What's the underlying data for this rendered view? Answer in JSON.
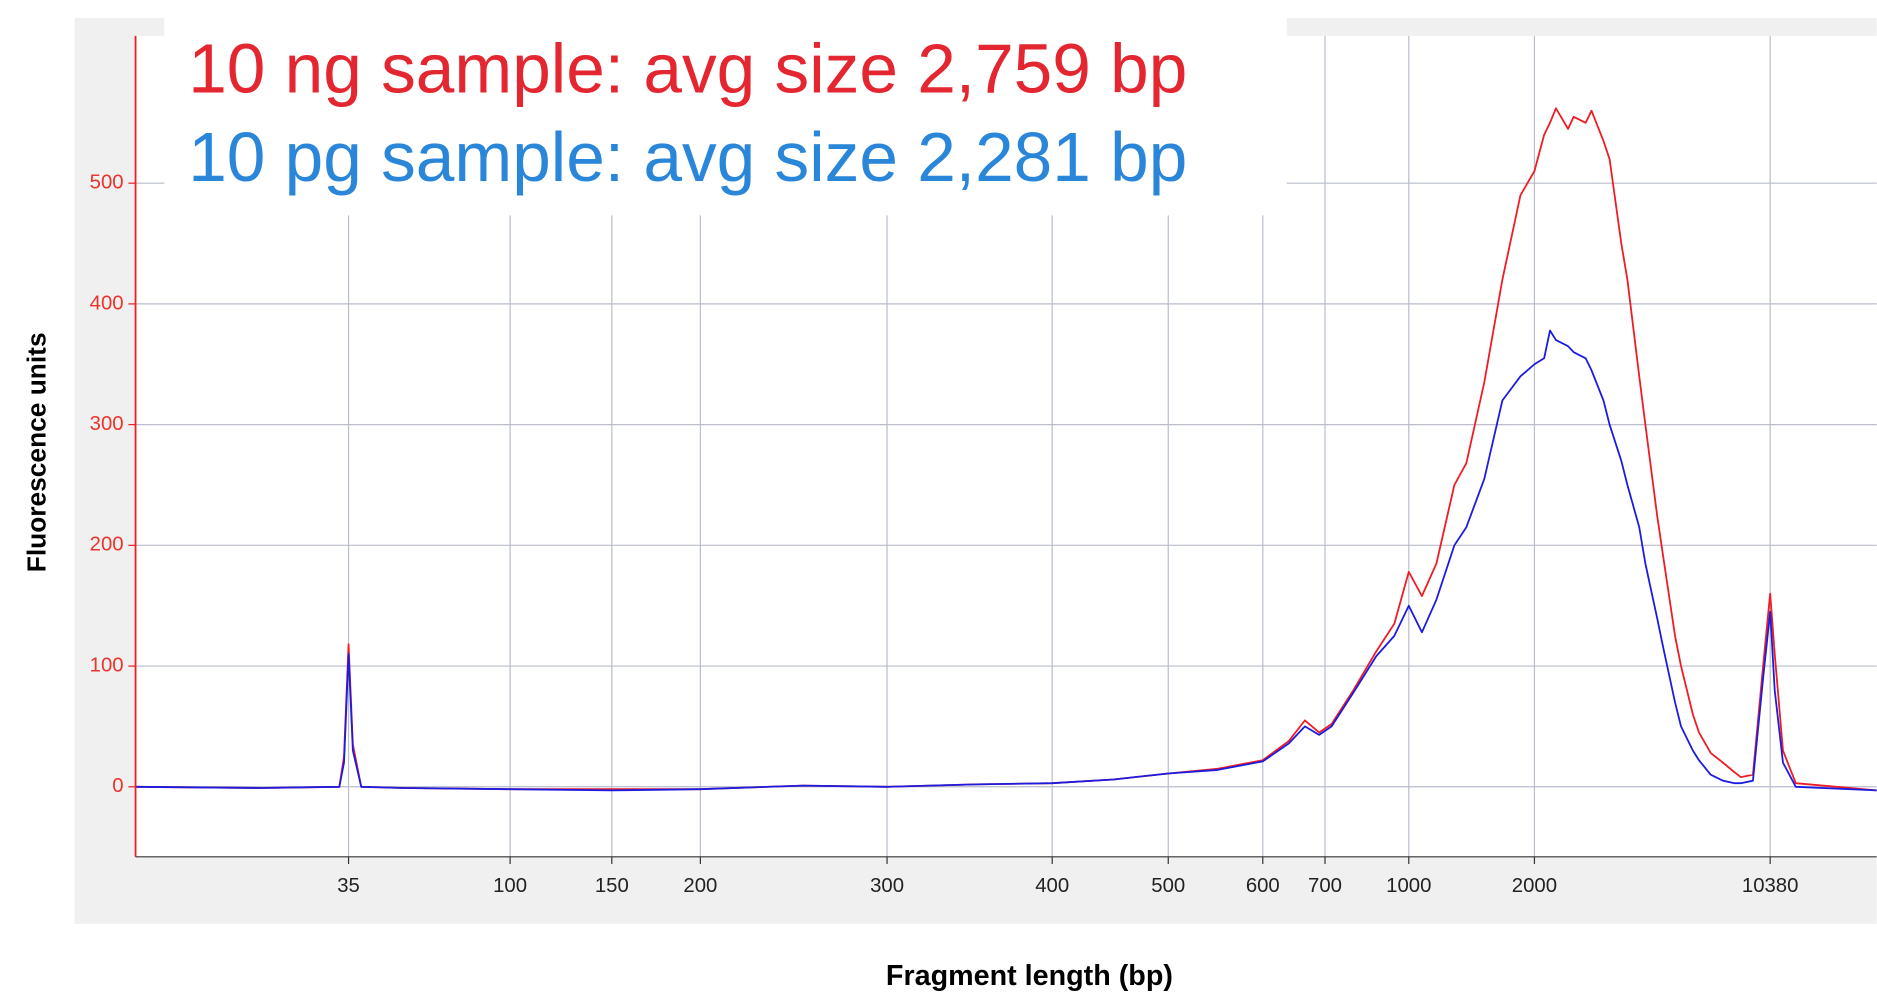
{
  "chart_data": {
    "type": "line",
    "annotations": [
      {
        "text": "10 ng sample: avg size 2,759 bp",
        "color": "#e32630"
      },
      {
        "text": "10 pg sample: avg size 2,281 bp",
        "color": "#2a86d8"
      }
    ],
    "x_label": "Fragment length (bp)",
    "y_label": "Fluorescence units",
    "xlim": [
      9,
      21000
    ],
    "xticks": [
      35,
      100,
      150,
      200,
      300,
      400,
      500,
      600,
      700,
      1000,
      2000,
      10380
    ],
    "ylim": [
      -58,
      622
    ],
    "yticks": [
      0,
      100,
      200,
      300,
      400,
      500
    ],
    "grid": true,
    "x": [
      9,
      20,
      33,
      34,
      35,
      36,
      38,
      50,
      100,
      150,
      200,
      250,
      300,
      350,
      400,
      450,
      500,
      550,
      600,
      640,
      666,
      690,
      720,
      790,
      870,
      940,
      1000,
      1075,
      1165,
      1286,
      1374,
      1517,
      1676,
      1851,
      2000,
      2140,
      2230,
      2325,
      2530,
      2630,
      2860,
      2980,
      3240,
      3380,
      3670,
      3830,
      4160,
      4340,
      4710,
      4920,
      5340,
      5570,
      6050,
      6310,
      6850,
      7460,
      8100,
      8450,
      9200,
      9880,
      10380,
      10700,
      11300,
      12300,
      21000
    ],
    "series": [
      {
        "color": "#ee1c25",
        "values": [
          0,
          -1,
          0,
          25,
          118,
          35,
          0,
          -1,
          -2,
          -2,
          -2,
          1,
          0,
          2,
          3,
          6,
          11,
          15,
          22,
          38,
          55,
          45,
          52,
          80,
          112,
          135,
          178,
          158,
          185,
          250,
          268,
          335,
          420,
          490,
          510,
          540,
          550,
          562,
          545,
          555,
          550,
          560,
          535,
          520,
          450,
          420,
          340,
          300,
          225,
          190,
          125,
          100,
          60,
          45,
          28,
          20,
          12,
          8,
          10,
          100,
          160,
          110,
          30,
          3,
          -3
        ]
      },
      {
        "color": "#1c1ce0",
        "values": [
          0,
          -1,
          0,
          20,
          110,
          30,
          0,
          -1,
          -2,
          -3,
          -2,
          1,
          0,
          2,
          3,
          6,
          11,
          14,
          21,
          36,
          50,
          43,
          50,
          78,
          108,
          125,
          150,
          128,
          155,
          200,
          215,
          255,
          320,
          340,
          350,
          355,
          378,
          370,
          365,
          360,
          355,
          345,
          320,
          300,
          270,
          250,
          215,
          185,
          140,
          115,
          70,
          50,
          30,
          22,
          10,
          5,
          3,
          3,
          5,
          90,
          145,
          80,
          20,
          0,
          -3
        ]
      }
    ]
  }
}
